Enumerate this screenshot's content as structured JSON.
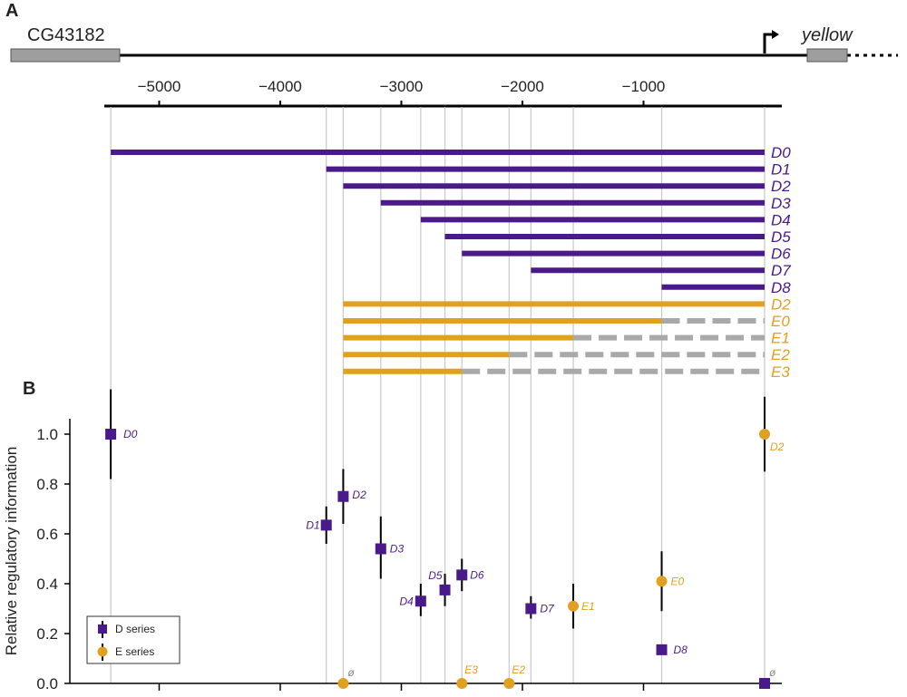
{
  "panels": {
    "a": "A",
    "b": "B"
  },
  "genes": {
    "left": "CG43182",
    "right": "yellow"
  },
  "colors": {
    "d_series": "#4b1a8a",
    "e_series": "#e0a020",
    "deleted": "#a9a9a9",
    "guide": "#c8c8c8",
    "gene_box": "#9e9e9e"
  },
  "top_axis": {
    "ticks": [
      -5000,
      -4000,
      -3000,
      -2000,
      -1000
    ],
    "tick_labels": [
      "−5000",
      "−4000",
      "−3000",
      "−2000",
      "−1000"
    ]
  },
  "constructs": [
    {
      "name": "D0",
      "series": "D",
      "start": -5400,
      "deleted_to": null
    },
    {
      "name": "D1",
      "series": "D",
      "start": -3620,
      "deleted_to": null
    },
    {
      "name": "D2",
      "series": "D",
      "start": -3480,
      "deleted_to": null
    },
    {
      "name": "D3",
      "series": "D",
      "start": -3170,
      "deleted_to": null
    },
    {
      "name": "D4",
      "series": "D",
      "start": -2840,
      "deleted_to": null
    },
    {
      "name": "D5",
      "series": "D",
      "start": -2640,
      "deleted_to": null
    },
    {
      "name": "D6",
      "series": "D",
      "start": -2500,
      "deleted_to": null
    },
    {
      "name": "D7",
      "series": "D",
      "start": -1930,
      "deleted_to": null
    },
    {
      "name": "D8",
      "series": "D",
      "start": -850,
      "deleted_to": null
    },
    {
      "name": "D2",
      "series": "E",
      "start": -3480,
      "deleted_to": null
    },
    {
      "name": "E0",
      "series": "E",
      "start": -3480,
      "deleted_to": -850
    },
    {
      "name": "E1",
      "series": "E",
      "start": -3480,
      "deleted_to": -1580
    },
    {
      "name": "E2",
      "series": "E",
      "start": -3480,
      "deleted_to": -2110
    },
    {
      "name": "E3",
      "series": "E",
      "start": -3480,
      "deleted_to": -2500
    }
  ],
  "chart_data": {
    "type": "scatter",
    "ylabel": "Relative regulatory information",
    "ylim": [
      0,
      1.1
    ],
    "yticks": [
      0.0,
      0.2,
      0.4,
      0.6,
      0.8,
      1.0
    ],
    "ytick_labels": [
      "0.0",
      "0.2",
      "0.4",
      "0.6",
      "0.8",
      "1.0"
    ],
    "legend": {
      "position": "bottom-left",
      "entries": [
        "D series",
        "E series"
      ]
    },
    "series": [
      {
        "name": "D series",
        "marker": "square",
        "points": [
          {
            "label": "D0",
            "x": -5400,
            "y": 1.0,
            "lo": 0.82,
            "hi": 1.18
          },
          {
            "label": "D1",
            "x": -3620,
            "y": 0.635,
            "lo": 0.56,
            "hi": 0.71
          },
          {
            "label": "D2",
            "x": -3480,
            "y": 0.75,
            "lo": 0.64,
            "hi": 0.86
          },
          {
            "label": "D3",
            "x": -3170,
            "y": 0.54,
            "lo": 0.42,
            "hi": 0.67
          },
          {
            "label": "D4",
            "x": -2840,
            "y": 0.33,
            "lo": 0.27,
            "hi": 0.4
          },
          {
            "label": "D5",
            "x": -2640,
            "y": 0.375,
            "lo": 0.31,
            "hi": 0.44
          },
          {
            "label": "D6",
            "x": -2500,
            "y": 0.435,
            "lo": 0.37,
            "hi": 0.5
          },
          {
            "label": "D7",
            "x": -1930,
            "y": 0.3,
            "lo": 0.26,
            "hi": 0.35
          },
          {
            "label": "D8",
            "x": -850,
            "y": 0.135,
            "lo": 0.135,
            "hi": 0.135
          },
          {
            "label": "ø",
            "x": 0,
            "y": 0.0,
            "lo": 0.0,
            "hi": 0.0
          }
        ]
      },
      {
        "name": "E series",
        "marker": "circle",
        "points": [
          {
            "label": "D2",
            "x": 0,
            "y": 1.0,
            "lo": 0.85,
            "hi": 1.15
          },
          {
            "label": "E0",
            "x": -850,
            "y": 0.41,
            "lo": 0.29,
            "hi": 0.53
          },
          {
            "label": "E1",
            "x": -1580,
            "y": 0.31,
            "lo": 0.22,
            "hi": 0.4
          },
          {
            "label": "E2",
            "x": -2110,
            "y": 0.0,
            "lo": 0.0,
            "hi": 0.0
          },
          {
            "label": "E3",
            "x": -2500,
            "y": 0.0,
            "lo": 0.0,
            "hi": 0.0
          },
          {
            "label": "ø",
            "x": -3480,
            "y": 0.0,
            "lo": 0.0,
            "hi": 0.0
          }
        ]
      }
    ]
  }
}
